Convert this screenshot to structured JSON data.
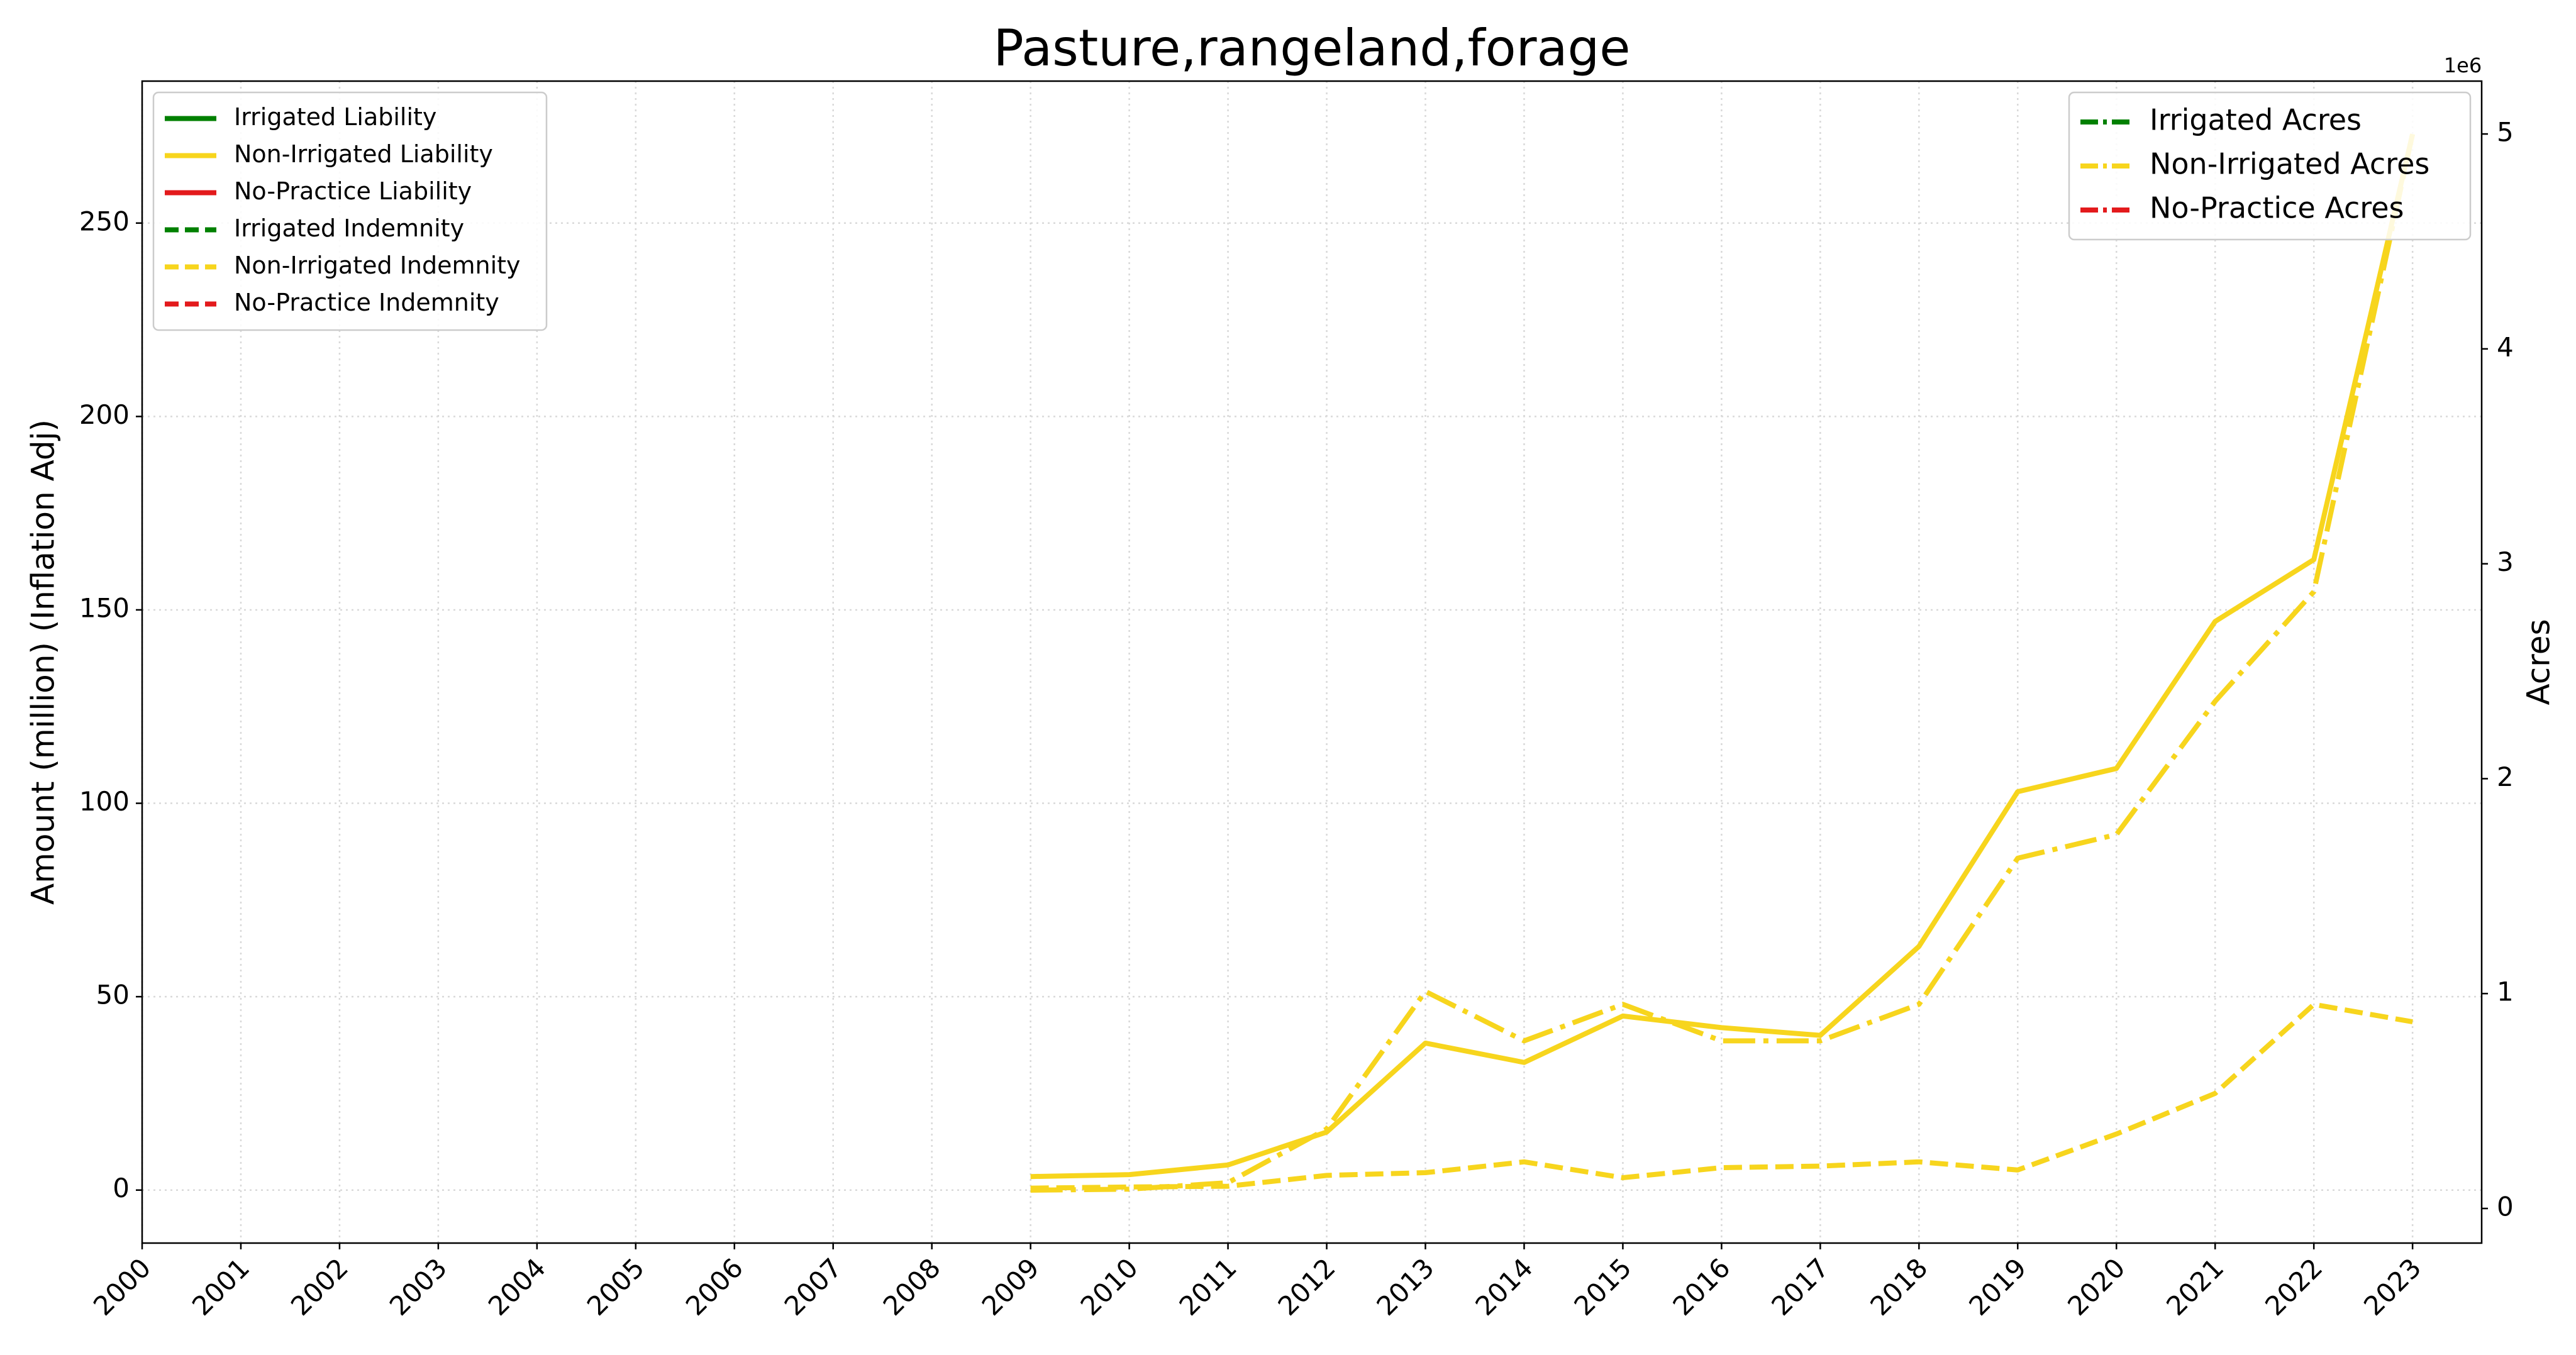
{
  "chart_data": {
    "type": "line",
    "title": "Pasture,rangeland,forage",
    "ylabel": "Amount (million) (Inflation Adj)",
    "y2label": "Acres",
    "y2offset": "1e6",
    "x": [
      2000,
      2001,
      2002,
      2003,
      2004,
      2005,
      2006,
      2007,
      2008,
      2009,
      2010,
      2011,
      2012,
      2013,
      2014,
      2015,
      2016,
      2017,
      2018,
      2019,
      2020,
      2021,
      2022,
      2023
    ],
    "xlim": [
      2000,
      2023.7
    ],
    "xticks": [
      2000,
      2001,
      2002,
      2003,
      2004,
      2005,
      2006,
      2007,
      2008,
      2009,
      2010,
      2011,
      2012,
      2013,
      2014,
      2015,
      2016,
      2017,
      2018,
      2019,
      2020,
      2021,
      2022,
      2023
    ],
    "ylim": [
      -13.7,
      286.7
    ],
    "yticks": [
      0,
      50,
      100,
      150,
      200,
      250
    ],
    "y2lim": [
      -161000,
      5246000
    ],
    "y2ticks": [
      {
        "value": 0,
        "label": "0"
      },
      {
        "value": 1000000,
        "label": "1"
      },
      {
        "value": 2000000,
        "label": "2"
      },
      {
        "value": 3000000,
        "label": "3"
      },
      {
        "value": 4000000,
        "label": "4"
      },
      {
        "value": 5000000,
        "label": "5"
      }
    ],
    "grid": true,
    "legend": "upper left",
    "y2legend": "upper right",
    "series": [
      {
        "name": "Irrigated Liability",
        "color": "#008000",
        "dash": "solid",
        "values": [
          null,
          null,
          null,
          null,
          null,
          null,
          null,
          null,
          null,
          null,
          null,
          null,
          null,
          null,
          null,
          null,
          null,
          null,
          null,
          null,
          null,
          null,
          null,
          null
        ]
      },
      {
        "name": "Non-Irrigated Liability",
        "color": "#f7d51d",
        "dash": "solid",
        "values": [
          null,
          null,
          null,
          null,
          null,
          null,
          null,
          null,
          null,
          3.5,
          4,
          6.5,
          15,
          38,
          33,
          45,
          42,
          40,
          63,
          103,
          109,
          147,
          163,
          273
        ]
      },
      {
        "name": "No-Practice Liability",
        "color": "#e31a1c",
        "dash": "solid",
        "values": [
          null,
          null,
          null,
          null,
          null,
          null,
          null,
          null,
          null,
          null,
          null,
          null,
          null,
          null,
          null,
          null,
          null,
          null,
          null,
          null,
          null,
          null,
          null,
          null
        ]
      },
      {
        "name": "Irrigated Indemnity",
        "color": "#008000",
        "dash": "dashed",
        "values": [
          null,
          null,
          null,
          null,
          null,
          null,
          null,
          null,
          null,
          null,
          null,
          null,
          null,
          null,
          null,
          null,
          null,
          null,
          null,
          null,
          null,
          null,
          null,
          null
        ]
      },
      {
        "name": "Non-Irrigated Indemnity",
        "color": "#f7d51d",
        "dash": "dashed",
        "values": [
          null,
          null,
          null,
          null,
          null,
          null,
          null,
          null,
          null,
          0.5,
          0.8,
          1,
          3.8,
          4.5,
          7.3,
          3.2,
          5.8,
          6.2,
          7.3,
          5.2,
          14.5,
          25,
          48,
          43.5
        ]
      },
      {
        "name": "No-Practice Indemnity",
        "color": "#e31a1c",
        "dash": "dashed",
        "values": [
          null,
          null,
          null,
          null,
          null,
          null,
          null,
          null,
          null,
          null,
          null,
          null,
          null,
          null,
          null,
          null,
          null,
          null,
          null,
          null,
          null,
          null,
          null,
          null
        ]
      },
      {
        "name": "Irrigated Acres",
        "color": "#008000",
        "dash": "dashdot",
        "axis": "y2",
        "values": [
          null,
          null,
          null,
          null,
          null,
          null,
          null,
          null,
          null,
          null,
          null,
          null,
          null,
          null,
          null,
          null,
          null,
          null,
          null,
          null,
          null,
          null,
          null,
          null
        ]
      },
      {
        "name": "Non-Irrigated Acres",
        "color": "#f7d51d",
        "dash": "dashdot",
        "axis": "y2",
        "values": [
          null,
          null,
          null,
          null,
          null,
          null,
          null,
          null,
          null,
          85000,
          90000,
          120000,
          370000,
          1010000,
          780000,
          950000,
          780000,
          780000,
          950000,
          1630000,
          1740000,
          2360000,
          2870000,
          5000000
        ]
      },
      {
        "name": "No-Practice Acres",
        "color": "#e31a1c",
        "dash": "dashdot",
        "axis": "y2",
        "values": [
          null,
          null,
          null,
          null,
          null,
          null,
          null,
          null,
          null,
          null,
          null,
          null,
          null,
          null,
          null,
          null,
          null,
          null,
          null,
          null,
          null,
          null,
          null,
          null
        ]
      }
    ]
  }
}
